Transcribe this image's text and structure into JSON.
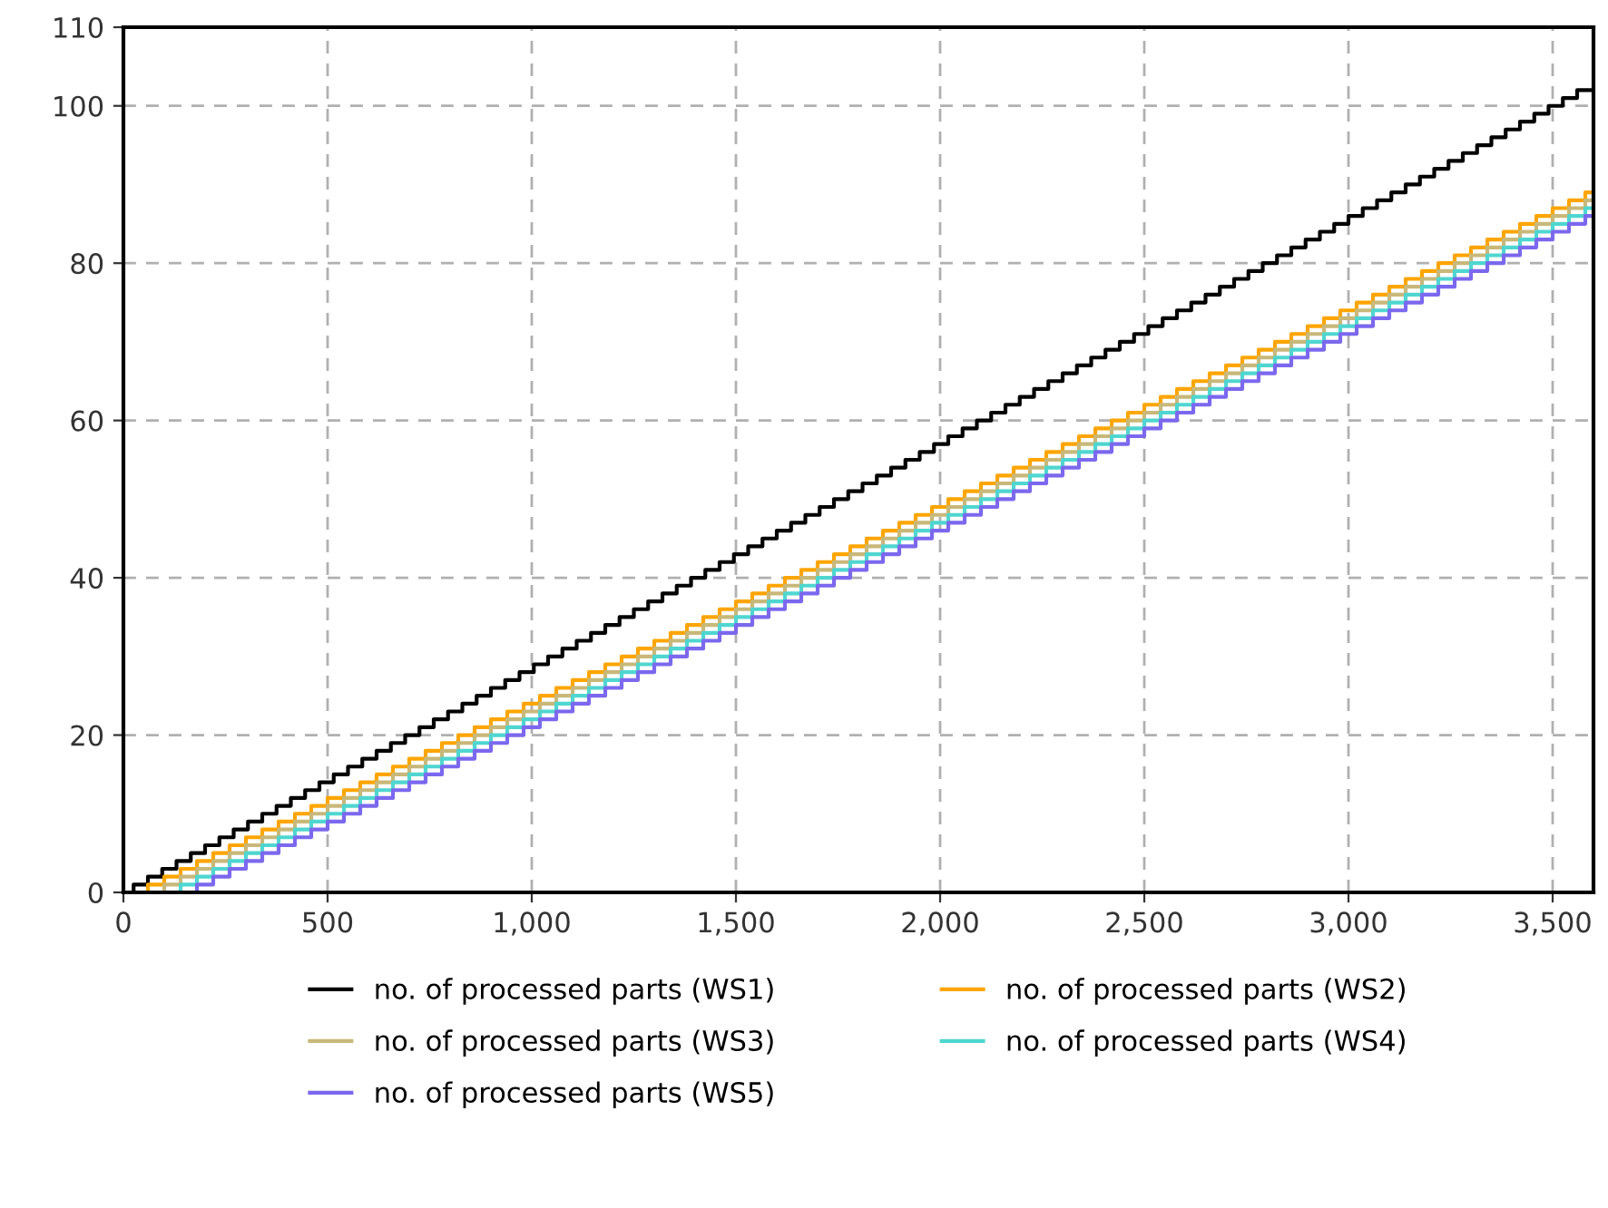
{
  "chart_data": {
    "type": "step",
    "xlim": [
      0,
      3600
    ],
    "ylim": [
      0,
      110
    ],
    "xticks": [
      0,
      500,
      {
        "value": 1000,
        "label": "1,000"
      },
      {
        "value": 1500,
        "label": "1,500"
      },
      {
        "value": 2000,
        "label": "2,000"
      },
      {
        "value": 2500,
        "label": "2,500"
      },
      {
        "value": 3000,
        "label": "3,000"
      },
      {
        "value": 3500,
        "label": "3,500"
      }
    ],
    "yticks": [
      0,
      20,
      40,
      60,
      80,
      100,
      110
    ],
    "grid": true,
    "legend": "bottom",
    "line_style": "solid",
    "series": [
      {
        "name": "no. of processed parts (WS1)",
        "color": "#000000",
        "x": [
          0,
          25,
          60,
          95,
          130,
          165,
          200,
          235,
          270,
          305,
          340,
          375,
          410,
          445,
          480,
          515,
          550,
          585,
          620,
          655,
          690,
          725,
          760,
          795,
          830,
          865,
          900,
          935,
          970,
          1005,
          1040,
          1075,
          1110,
          1145,
          1180,
          1215,
          1250,
          1285,
          1320,
          1355,
          1390,
          1425,
          1460,
          1495,
          1530,
          1565,
          1600,
          1635,
          1670,
          1705,
          1740,
          1775,
          1810,
          1845,
          1880,
          1915,
          1950,
          1985,
          2020,
          2055,
          2090,
          2125,
          2160,
          2195,
          2230,
          2265,
          2300,
          2335,
          2370,
          2405,
          2440,
          2475,
          2510,
          2545,
          2580,
          2615,
          2650,
          2685,
          2720,
          2755,
          2790,
          2825,
          2860,
          2895,
          2930,
          2965,
          3000,
          3035,
          3070,
          3105,
          3140,
          3175,
          3210,
          3245,
          3280,
          3315,
          3350,
          3385,
          3420,
          3455,
          3490,
          3525,
          3560,
          3600
        ],
        "values": [
          0,
          1,
          2,
          3,
          4,
          5,
          6,
          7,
          8,
          9,
          10,
          11,
          12,
          13,
          14,
          15,
          16,
          17,
          18,
          19,
          20,
          21,
          22,
          23,
          24,
          25,
          26,
          27,
          28,
          29,
          30,
          31,
          32,
          33,
          34,
          35,
          36,
          37,
          38,
          39,
          40,
          41,
          42,
          43,
          44,
          45,
          46,
          47,
          48,
          49,
          50,
          51,
          52,
          53,
          54,
          55,
          56,
          57,
          58,
          59,
          60,
          61,
          62,
          63,
          64,
          65,
          66,
          67,
          68,
          69,
          70,
          71,
          72,
          73,
          74,
          75,
          76,
          77,
          78,
          79,
          80,
          81,
          82,
          83,
          84,
          85,
          86,
          87,
          88,
          89,
          90,
          91,
          92,
          93,
          94,
          95,
          96,
          97,
          98,
          99,
          100,
          101,
          102,
          102
        ]
      },
      {
        "name": "no. of processed parts (WS2)",
        "color": "#ffa500",
        "x": [
          0,
          60,
          100,
          140,
          180,
          220,
          260,
          300,
          340,
          380,
          420,
          460,
          500,
          540,
          580,
          620,
          660,
          700,
          740,
          780,
          820,
          860,
          900,
          940,
          980,
          1020,
          1060,
          1100,
          1140,
          1180,
          1220,
          1260,
          1300,
          1340,
          1380,
          1420,
          1460,
          1500,
          1540,
          1580,
          1620,
          1660,
          1700,
          1740,
          1780,
          1820,
          1860,
          1900,
          1940,
          1980,
          2020,
          2060,
          2100,
          2140,
          2180,
          2220,
          2260,
          2300,
          2340,
          2380,
          2420,
          2460,
          2500,
          2540,
          2580,
          2620,
          2660,
          2700,
          2740,
          2780,
          2820,
          2860,
          2900,
          2940,
          2980,
          3020,
          3060,
          3100,
          3140,
          3180,
          3220,
          3260,
          3300,
          3340,
          3380,
          3420,
          3460,
          3500,
          3540,
          3580,
          3600
        ],
        "values": [
          0,
          1,
          2,
          3,
          4,
          5,
          6,
          7,
          8,
          9,
          10,
          11,
          12,
          13,
          14,
          15,
          16,
          17,
          18,
          19,
          20,
          21,
          22,
          23,
          24,
          25,
          26,
          27,
          28,
          29,
          30,
          31,
          32,
          33,
          34,
          35,
          36,
          37,
          38,
          39,
          40,
          41,
          42,
          43,
          44,
          45,
          46,
          47,
          48,
          49,
          50,
          51,
          52,
          53,
          54,
          55,
          56,
          57,
          58,
          59,
          60,
          61,
          62,
          63,
          64,
          65,
          66,
          67,
          68,
          69,
          70,
          71,
          72,
          73,
          74,
          75,
          76,
          77,
          78,
          79,
          80,
          81,
          82,
          83,
          84,
          85,
          86,
          87,
          88,
          89,
          89
        ]
      },
      {
        "name": "no. of processed parts (WS3)",
        "color": "#c8b87a",
        "x": [
          0,
          100,
          140,
          180,
          220,
          260,
          300,
          340,
          380,
          420,
          460,
          500,
          540,
          580,
          620,
          660,
          700,
          740,
          780,
          820,
          860,
          900,
          940,
          980,
          1020,
          1060,
          1100,
          1140,
          1180,
          1220,
          1260,
          1300,
          1340,
          1380,
          1420,
          1460,
          1500,
          1540,
          1580,
          1620,
          1660,
          1700,
          1740,
          1780,
          1820,
          1860,
          1900,
          1940,
          1980,
          2020,
          2060,
          2100,
          2140,
          2180,
          2220,
          2260,
          2300,
          2340,
          2380,
          2420,
          2460,
          2500,
          2540,
          2580,
          2620,
          2660,
          2700,
          2740,
          2780,
          2820,
          2860,
          2900,
          2940,
          2980,
          3020,
          3060,
          3100,
          3140,
          3180,
          3220,
          3260,
          3300,
          3340,
          3380,
          3420,
          3460,
          3500,
          3540,
          3580,
          3600
        ],
        "values": [
          0,
          1,
          2,
          3,
          4,
          5,
          6,
          7,
          8,
          9,
          10,
          11,
          12,
          13,
          14,
          15,
          16,
          17,
          18,
          19,
          20,
          21,
          22,
          23,
          24,
          25,
          26,
          27,
          28,
          29,
          30,
          31,
          32,
          33,
          34,
          35,
          36,
          37,
          38,
          39,
          40,
          41,
          42,
          43,
          44,
          45,
          46,
          47,
          48,
          49,
          50,
          51,
          52,
          53,
          54,
          55,
          56,
          57,
          58,
          59,
          60,
          61,
          62,
          63,
          64,
          65,
          66,
          67,
          68,
          69,
          70,
          71,
          72,
          73,
          74,
          75,
          76,
          77,
          78,
          79,
          80,
          81,
          82,
          83,
          84,
          85,
          86,
          87,
          88,
          88
        ]
      },
      {
        "name": "no. of processed parts (WS4)",
        "color": "#4fd6d0",
        "x": [
          0,
          140,
          180,
          220,
          260,
          300,
          340,
          380,
          420,
          460,
          500,
          540,
          580,
          620,
          660,
          700,
          740,
          780,
          820,
          860,
          900,
          940,
          980,
          1020,
          1060,
          1100,
          1140,
          1180,
          1220,
          1260,
          1300,
          1340,
          1380,
          1420,
          1460,
          1500,
          1540,
          1580,
          1620,
          1660,
          1700,
          1740,
          1780,
          1820,
          1860,
          1900,
          1940,
          1980,
          2020,
          2060,
          2100,
          2140,
          2180,
          2220,
          2260,
          2300,
          2340,
          2380,
          2420,
          2460,
          2500,
          2540,
          2580,
          2620,
          2660,
          2700,
          2740,
          2780,
          2820,
          2860,
          2900,
          2940,
          2980,
          3020,
          3060,
          3100,
          3140,
          3180,
          3220,
          3260,
          3300,
          3340,
          3380,
          3420,
          3460,
          3500,
          3540,
          3580,
          3600
        ],
        "values": [
          0,
          1,
          2,
          3,
          4,
          5,
          6,
          7,
          8,
          9,
          10,
          11,
          12,
          13,
          14,
          15,
          16,
          17,
          18,
          19,
          20,
          21,
          22,
          23,
          24,
          25,
          26,
          27,
          28,
          29,
          30,
          31,
          32,
          33,
          34,
          35,
          36,
          37,
          38,
          39,
          40,
          41,
          42,
          43,
          44,
          45,
          46,
          47,
          48,
          49,
          50,
          51,
          52,
          53,
          54,
          55,
          56,
          57,
          58,
          59,
          60,
          61,
          62,
          63,
          64,
          65,
          66,
          67,
          68,
          69,
          70,
          71,
          72,
          73,
          74,
          75,
          76,
          77,
          78,
          79,
          80,
          81,
          82,
          83,
          84,
          85,
          86,
          87,
          87
        ]
      },
      {
        "name": "no. of processed parts (WS5)",
        "color": "#7b68ee",
        "x": [
          0,
          180,
          220,
          260,
          300,
          340,
          380,
          420,
          460,
          500,
          540,
          580,
          620,
          660,
          700,
          740,
          780,
          820,
          860,
          900,
          940,
          980,
          1020,
          1060,
          1100,
          1140,
          1180,
          1220,
          1260,
          1300,
          1340,
          1380,
          1420,
          1460,
          1500,
          1540,
          1580,
          1620,
          1660,
          1700,
          1740,
          1780,
          1820,
          1860,
          1900,
          1940,
          1980,
          2020,
          2060,
          2100,
          2140,
          2180,
          2220,
          2260,
          2300,
          2340,
          2380,
          2420,
          2460,
          2500,
          2540,
          2580,
          2620,
          2660,
          2700,
          2740,
          2780,
          2820,
          2860,
          2900,
          2940,
          2980,
          3020,
          3060,
          3100,
          3140,
          3180,
          3220,
          3260,
          3300,
          3340,
          3380,
          3420,
          3460,
          3500,
          3540,
          3580,
          3600
        ],
        "values": [
          0,
          1,
          2,
          3,
          4,
          5,
          6,
          7,
          8,
          9,
          10,
          11,
          12,
          13,
          14,
          15,
          16,
          17,
          18,
          19,
          20,
          21,
          22,
          23,
          24,
          25,
          26,
          27,
          28,
          29,
          30,
          31,
          32,
          33,
          34,
          35,
          36,
          37,
          38,
          39,
          40,
          41,
          42,
          43,
          44,
          45,
          46,
          47,
          48,
          49,
          50,
          51,
          52,
          53,
          54,
          55,
          56,
          57,
          58,
          59,
          60,
          61,
          62,
          63,
          64,
          65,
          66,
          67,
          68,
          69,
          70,
          71,
          72,
          73,
          74,
          75,
          76,
          77,
          78,
          79,
          80,
          81,
          82,
          83,
          84,
          85,
          86,
          86
        ]
      }
    ]
  }
}
